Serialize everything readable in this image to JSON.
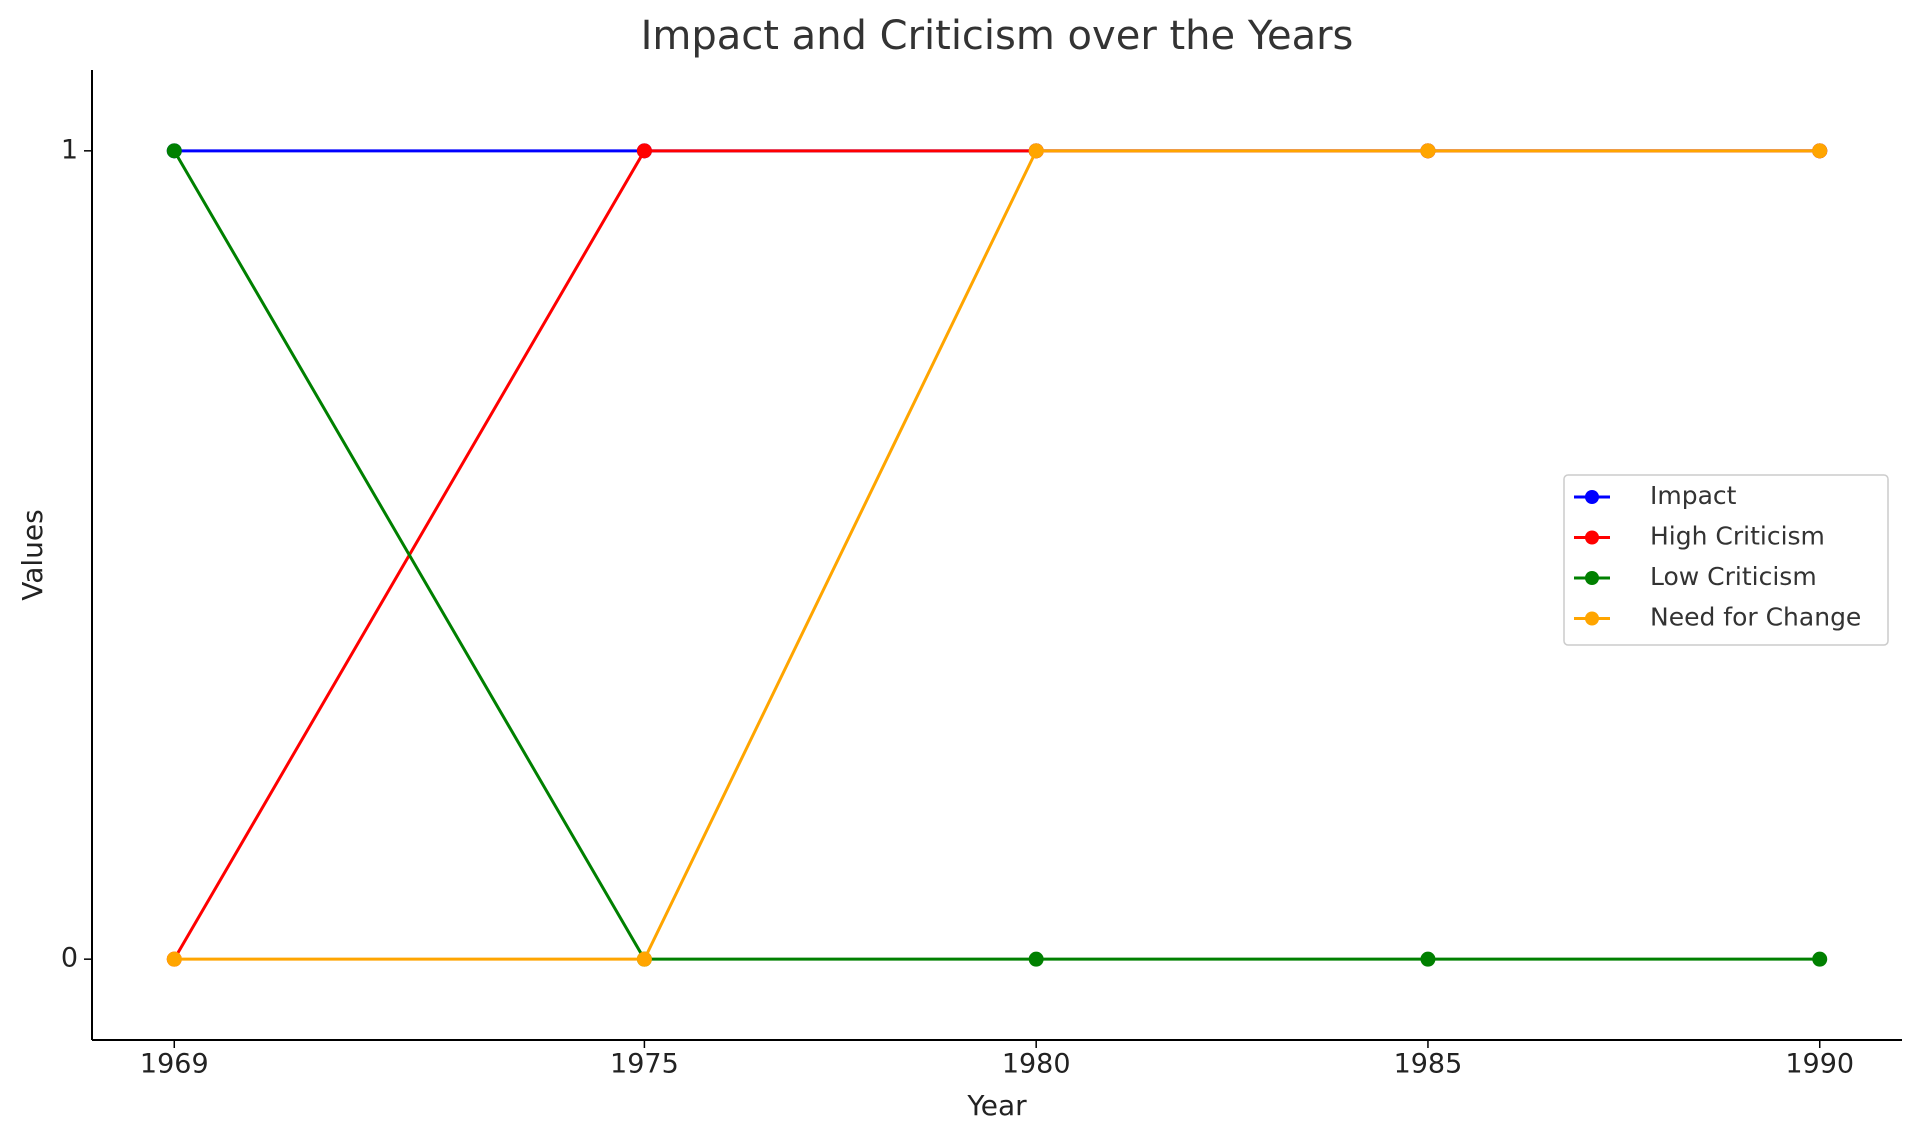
{
  "chart_data": {
    "type": "line",
    "title": "Impact and Criticism over the Years",
    "x_label": "Year",
    "y_label": "Values",
    "x": [
      1969,
      1975,
      1980,
      1985,
      1990
    ],
    "series": [
      {
        "name": "Impact",
        "color": "#0000ff",
        "values": [
          1,
          1,
          1,
          1,
          1
        ]
      },
      {
        "name": "High Criticism",
        "color": "#ff0000",
        "values": [
          0,
          1,
          1,
          1,
          1
        ]
      },
      {
        "name": "Low Criticism",
        "color": "#008000",
        "values": [
          1,
          0,
          0,
          0,
          0
        ]
      },
      {
        "name": "Need for Change",
        "color": "#ffa500",
        "values": [
          0,
          0,
          1,
          1,
          1
        ]
      }
    ],
    "xlim": [
      1967.95,
      1991.05
    ],
    "xticks": [
      1969,
      1975,
      1980,
      1985,
      1990
    ],
    "ylim": [
      -0.1,
      1.1
    ],
    "yticks": [
      0,
      1
    ],
    "grid": false,
    "legend": "center right"
  }
}
